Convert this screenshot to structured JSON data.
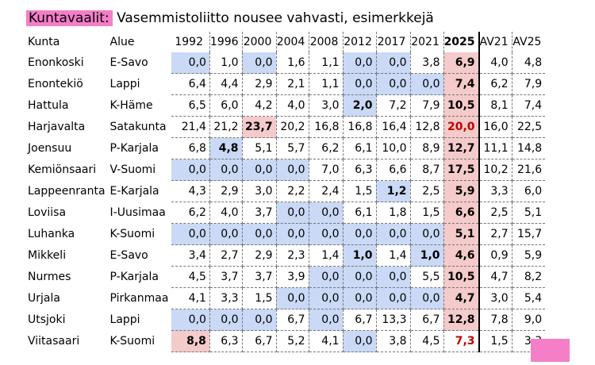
{
  "title": {
    "highlight": "Kuntavaalit:",
    "text": " Vasemmistoliitto nousee vahvasti, esimerkkejä"
  },
  "colors": {
    "highlight": "#f47ec8",
    "low": "#c9d9f6",
    "high": "#f5caca",
    "red_text": "#c00000"
  },
  "chart_data": {
    "type": "table",
    "columns": [
      "Kunta",
      "Alue",
      "1992",
      "1996",
      "2000",
      "2004",
      "2008",
      "2012",
      "2017",
      "2021",
      "2025",
      "AV21",
      "AV25"
    ],
    "rows": [
      {
        "kunta": "Enonkoski",
        "alue": "E-Savo",
        "values": [
          "0,0",
          "1,0",
          "0,0",
          "1,6",
          "1,1",
          "0,0",
          "0,0",
          "3,8",
          "6,9",
          "4,0",
          "4,8"
        ],
        "blue": [
          0,
          2,
          5,
          6
        ],
        "pink": [
          8
        ],
        "bold": [
          8
        ],
        "red": []
      },
      {
        "kunta": "Enontekiö",
        "alue": "Lappi",
        "values": [
          "6,4",
          "4,4",
          "2,9",
          "2,1",
          "1,1",
          "0,0",
          "0,0",
          "0,0",
          "7,4",
          "6,2",
          "7,9"
        ],
        "blue": [
          5,
          6,
          7
        ],
        "pink": [
          8
        ],
        "bold": [
          8
        ],
        "red": []
      },
      {
        "kunta": "Hattula",
        "alue": "K-Häme",
        "values": [
          "6,5",
          "6,0",
          "4,2",
          "4,0",
          "3,0",
          "2,0",
          "7,2",
          "7,9",
          "10,5",
          "8,1",
          "7,4"
        ],
        "blue": [
          5
        ],
        "pink": [
          8
        ],
        "bold": [
          5,
          8
        ],
        "red": []
      },
      {
        "kunta": "Harjavalta",
        "alue": "Satakunta",
        "values": [
          "21,4",
          "21,2",
          "23,7",
          "20,2",
          "16,8",
          "16,8",
          "16,4",
          "12,8",
          "20,0",
          "16,0",
          "22,5"
        ],
        "blue": [],
        "pink": [
          2,
          8
        ],
        "bold": [
          2
        ],
        "red": [
          8
        ]
      },
      {
        "kunta": "Joensuu",
        "alue": "P-Karjala",
        "values": [
          "6,8",
          "4,8",
          "5,1",
          "5,7",
          "6,2",
          "6,1",
          "10,0",
          "8,9",
          "12,7",
          "11,1",
          "14,8"
        ],
        "blue": [
          1
        ],
        "pink": [
          8
        ],
        "bold": [
          1,
          8
        ],
        "red": []
      },
      {
        "kunta": "Kemiönsaari",
        "alue": "V-Suomi",
        "values": [
          "0,0",
          "0,0",
          "0,0",
          "0,0",
          "7,0",
          "6,3",
          "6,6",
          "8,7",
          "17,5",
          "10,2",
          "21,6"
        ],
        "blue": [
          0,
          1,
          2,
          3
        ],
        "pink": [
          8
        ],
        "bold": [
          8
        ],
        "red": []
      },
      {
        "kunta": "Lappeenranta",
        "alue": "E-Karjala",
        "values": [
          "4,3",
          "2,9",
          "3,0",
          "2,2",
          "2,4",
          "1,5",
          "1,2",
          "2,5",
          "5,9",
          "3,3",
          "6,0"
        ],
        "blue": [
          6
        ],
        "pink": [
          8
        ],
        "bold": [
          6,
          8
        ],
        "red": []
      },
      {
        "kunta": "Loviisa",
        "alue": "I-Uusimaa",
        "values": [
          "6,2",
          "4,0",
          "3,7",
          "0,0",
          "0,0",
          "6,1",
          "1,8",
          "1,5",
          "6,6",
          "2,5",
          "5,1"
        ],
        "blue": [
          3,
          4
        ],
        "pink": [
          8
        ],
        "bold": [
          8
        ],
        "red": []
      },
      {
        "kunta": "Luhanka",
        "alue": "K-Suomi",
        "values": [
          "0,0",
          "0,0",
          "0,0",
          "0,0",
          "0,0",
          "0,0",
          "0,0",
          "0,0",
          "5,1",
          "2,7",
          "15,7"
        ],
        "blue": [
          0,
          1,
          2,
          3,
          4,
          5,
          6,
          7
        ],
        "pink": [
          8
        ],
        "bold": [
          8
        ],
        "red": []
      },
      {
        "kunta": "Mikkeli",
        "alue": "E-Savo",
        "values": [
          "3,4",
          "2,7",
          "2,9",
          "2,3",
          "1,4",
          "1,0",
          "1,4",
          "1,0",
          "4,6",
          "0,9",
          "5,9"
        ],
        "blue": [
          5,
          7
        ],
        "pink": [
          8
        ],
        "bold": [
          5,
          7,
          8
        ],
        "red": []
      },
      {
        "kunta": "Nurmes",
        "alue": "P-Karjala",
        "values": [
          "4,5",
          "3,7",
          "3,7",
          "3,9",
          "0,0",
          "0,0",
          "0,0",
          "5,5",
          "10,5",
          "4,7",
          "8,2"
        ],
        "blue": [
          4,
          5,
          6
        ],
        "pink": [
          8
        ],
        "bold": [
          8
        ],
        "red": []
      },
      {
        "kunta": "Urjala",
        "alue": "Pirkanmaa",
        "values": [
          "4,1",
          "3,3",
          "1,5",
          "0,0",
          "0,0",
          "0,0",
          "0,0",
          "0,0",
          "4,7",
          "3,0",
          "5,4"
        ],
        "blue": [
          3,
          4,
          5,
          6,
          7
        ],
        "pink": [
          8
        ],
        "bold": [
          8
        ],
        "red": []
      },
      {
        "kunta": "Utsjoki",
        "alue": "Lappi",
        "values": [
          "0,0",
          "0,0",
          "0,0",
          "6,7",
          "0,0",
          "6,7",
          "13,3",
          "6,7",
          "12,8",
          "7,8",
          "9,0"
        ],
        "blue": [
          0,
          1,
          2,
          4
        ],
        "pink": [
          8
        ],
        "bold": [
          8
        ],
        "red": []
      },
      {
        "kunta": "Viitasaari",
        "alue": "K-Suomi",
        "values": [
          "8,8",
          "6,3",
          "6,7",
          "5,2",
          "4,1",
          "0,0",
          "3,8",
          "4,5",
          "7,3",
          "1,5",
          "3,3"
        ],
        "blue": [
          5
        ],
        "pink": [
          0
        ],
        "bold": [
          0
        ],
        "red": [
          8
        ]
      }
    ]
  }
}
